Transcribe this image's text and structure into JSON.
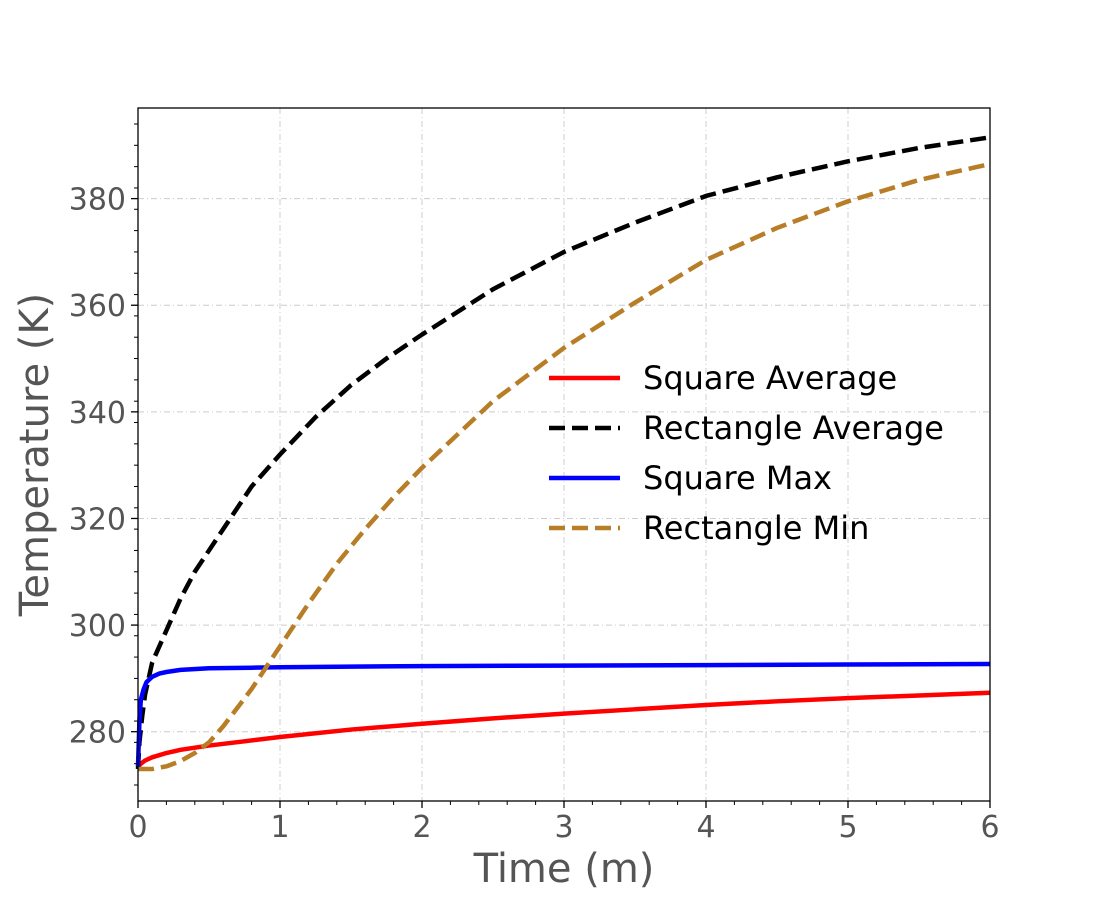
{
  "chart_data": {
    "type": "line",
    "title": "",
    "xlabel": "Time (m)",
    "ylabel": "Temperature (K)",
    "xlim": [
      0,
      6
    ],
    "ylim": [
      267,
      397
    ],
    "x_ticks": [
      0,
      1,
      2,
      3,
      4,
      5,
      6
    ],
    "y_ticks": [
      280,
      300,
      320,
      340,
      360,
      380
    ],
    "grid": true,
    "legend_position": "center-right",
    "series": [
      {
        "name": "Square Average",
        "color": "#ff0000",
        "dash": "solid",
        "x": [
          0,
          0.02,
          0.05,
          0.1,
          0.2,
          0.3,
          0.5,
          0.75,
          1.0,
          1.5,
          2.0,
          2.5,
          3.0,
          3.5,
          4.0,
          4.5,
          5.0,
          5.5,
          6.0
        ],
        "y": [
          273.5,
          274.0,
          274.6,
          275.2,
          276.0,
          276.6,
          277.4,
          278.2,
          279.0,
          280.4,
          281.5,
          282.5,
          283.4,
          284.2,
          285.0,
          285.7,
          286.3,
          286.8,
          287.3
        ]
      },
      {
        "name": "Rectangle Average",
        "color": "#000000",
        "dash": "dashed",
        "x": [
          0,
          0.01,
          0.03,
          0.05,
          0.1,
          0.2,
          0.3,
          0.4,
          0.6,
          0.8,
          1.0,
          1.25,
          1.5,
          1.75,
          2.0,
          2.5,
          3.0,
          3.5,
          4.0,
          4.5,
          5.0,
          5.5,
          6.0
        ],
        "y": [
          273,
          278,
          283,
          287,
          293,
          299,
          305,
          310,
          318,
          326,
          332,
          339,
          345,
          350,
          354.5,
          363,
          370,
          375.5,
          380.5,
          384,
          387,
          389.5,
          391.5
        ]
      },
      {
        "name": "Square Max",
        "color": "#0000ff",
        "dash": "solid",
        "x": [
          0,
          0.01,
          0.02,
          0.04,
          0.06,
          0.1,
          0.15,
          0.2,
          0.3,
          0.5,
          0.8,
          1.0,
          1.5,
          2.0,
          3.0,
          4.0,
          5.0,
          6.0
        ],
        "y": [
          273.5,
          282,
          286,
          288,
          289.3,
          290.3,
          290.9,
          291.2,
          291.6,
          291.9,
          292.0,
          292.1,
          292.2,
          292.3,
          292.4,
          292.5,
          292.6,
          292.7
        ]
      },
      {
        "name": "Rectangle Min",
        "color": "#b87d27",
        "dash": "dashed",
        "x": [
          0,
          0.1,
          0.2,
          0.3,
          0.4,
          0.5,
          0.6,
          0.7,
          0.8,
          0.9,
          1.0,
          1.2,
          1.4,
          1.6,
          1.8,
          2.0,
          2.5,
          3.0,
          3.5,
          4.0,
          4.5,
          5.0,
          5.5,
          6.0
        ],
        "y": [
          273,
          273,
          273.5,
          274.5,
          276,
          278,
          281,
          284.5,
          288,
          292,
          296,
          304,
          311.5,
          318,
          324,
          329.5,
          342,
          352,
          360.5,
          368.5,
          374.5,
          379.5,
          383.5,
          386.5
        ]
      }
    ]
  }
}
